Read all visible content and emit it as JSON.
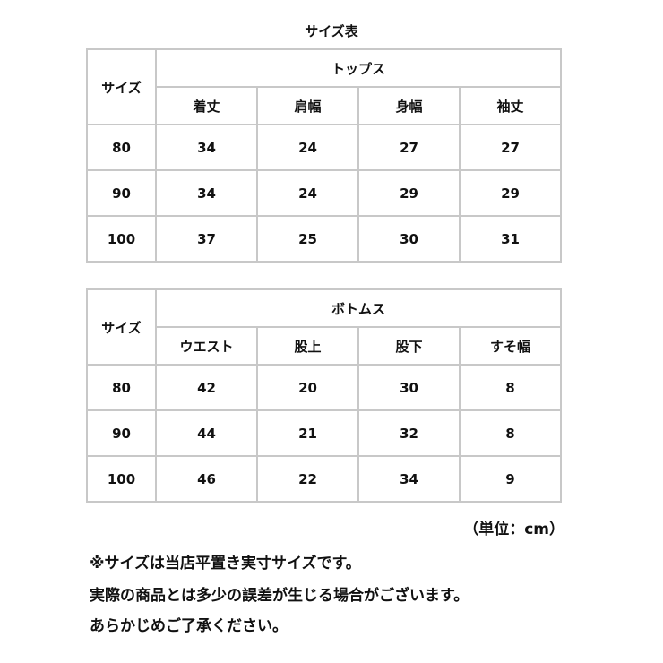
{
  "title": "サイズ表",
  "tables": [
    {
      "size_label": "サイズ",
      "group_label": "トップス",
      "columns": [
        "着丈",
        "肩幅",
        "身幅",
        "袖丈"
      ],
      "rows": [
        {
          "size": "80",
          "values": [
            "34",
            "24",
            "27",
            "27"
          ]
        },
        {
          "size": "90",
          "values": [
            "34",
            "24",
            "29",
            "29"
          ]
        },
        {
          "size": "100",
          "values": [
            "37",
            "25",
            "30",
            "31"
          ]
        }
      ]
    },
    {
      "size_label": "サイズ",
      "group_label": "ボトムス",
      "columns": [
        "ウエスト",
        "股上",
        "股下",
        "すそ幅"
      ],
      "rows": [
        {
          "size": "80",
          "values": [
            "42",
            "20",
            "30",
            "8"
          ]
        },
        {
          "size": "90",
          "values": [
            "44",
            "21",
            "32",
            "8"
          ]
        },
        {
          "size": "100",
          "values": [
            "46",
            "22",
            "34",
            "9"
          ]
        }
      ]
    }
  ],
  "unit": "（単位：cm）",
  "notes": [
    "※サイズは当店平置き実寸サイズです。",
    "実際の商品とは多少の誤差が生じる場合がございます。",
    "あらかじめご了承ください。"
  ]
}
